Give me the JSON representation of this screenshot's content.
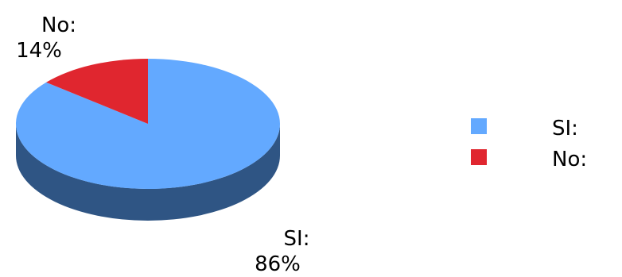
{
  "chart_data": {
    "type": "pie",
    "slices": [
      {
        "label": "SI:",
        "percent_label": "86%",
        "value": 86,
        "color": "#63A9FF",
        "side_color": "#2F5584"
      },
      {
        "label": "No:",
        "percent_label": "14%",
        "value": 14,
        "color": "#E0262F",
        "side_color": "#8E1B21"
      }
    ],
    "legend": {
      "placement": "right",
      "items": [
        {
          "label": "SI:",
          "color": "#63A9FF"
        },
        {
          "label": "No:",
          "color": "#E0262F"
        }
      ]
    }
  }
}
